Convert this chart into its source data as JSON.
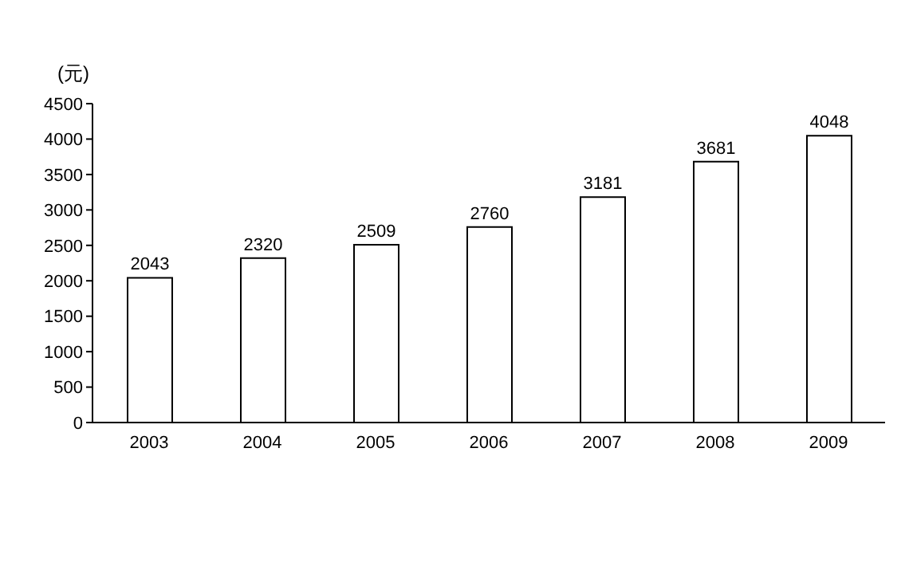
{
  "chart_data": {
    "type": "bar",
    "ylabel": "(元)",
    "categories": [
      "2003",
      "2004",
      "2005",
      "2006",
      "2007",
      "2008",
      "2009"
    ],
    "values": [
      2043,
      2320,
      2509,
      2760,
      3181,
      3681,
      4048
    ],
    "color": "#ffffff",
    "ylim": [
      0,
      4500
    ],
    "yticks": [
      0,
      500,
      1000,
      1500,
      2000,
      2500,
      3000,
      3500,
      4000,
      4500
    ],
    "data_labels": true,
    "grid": false
  }
}
